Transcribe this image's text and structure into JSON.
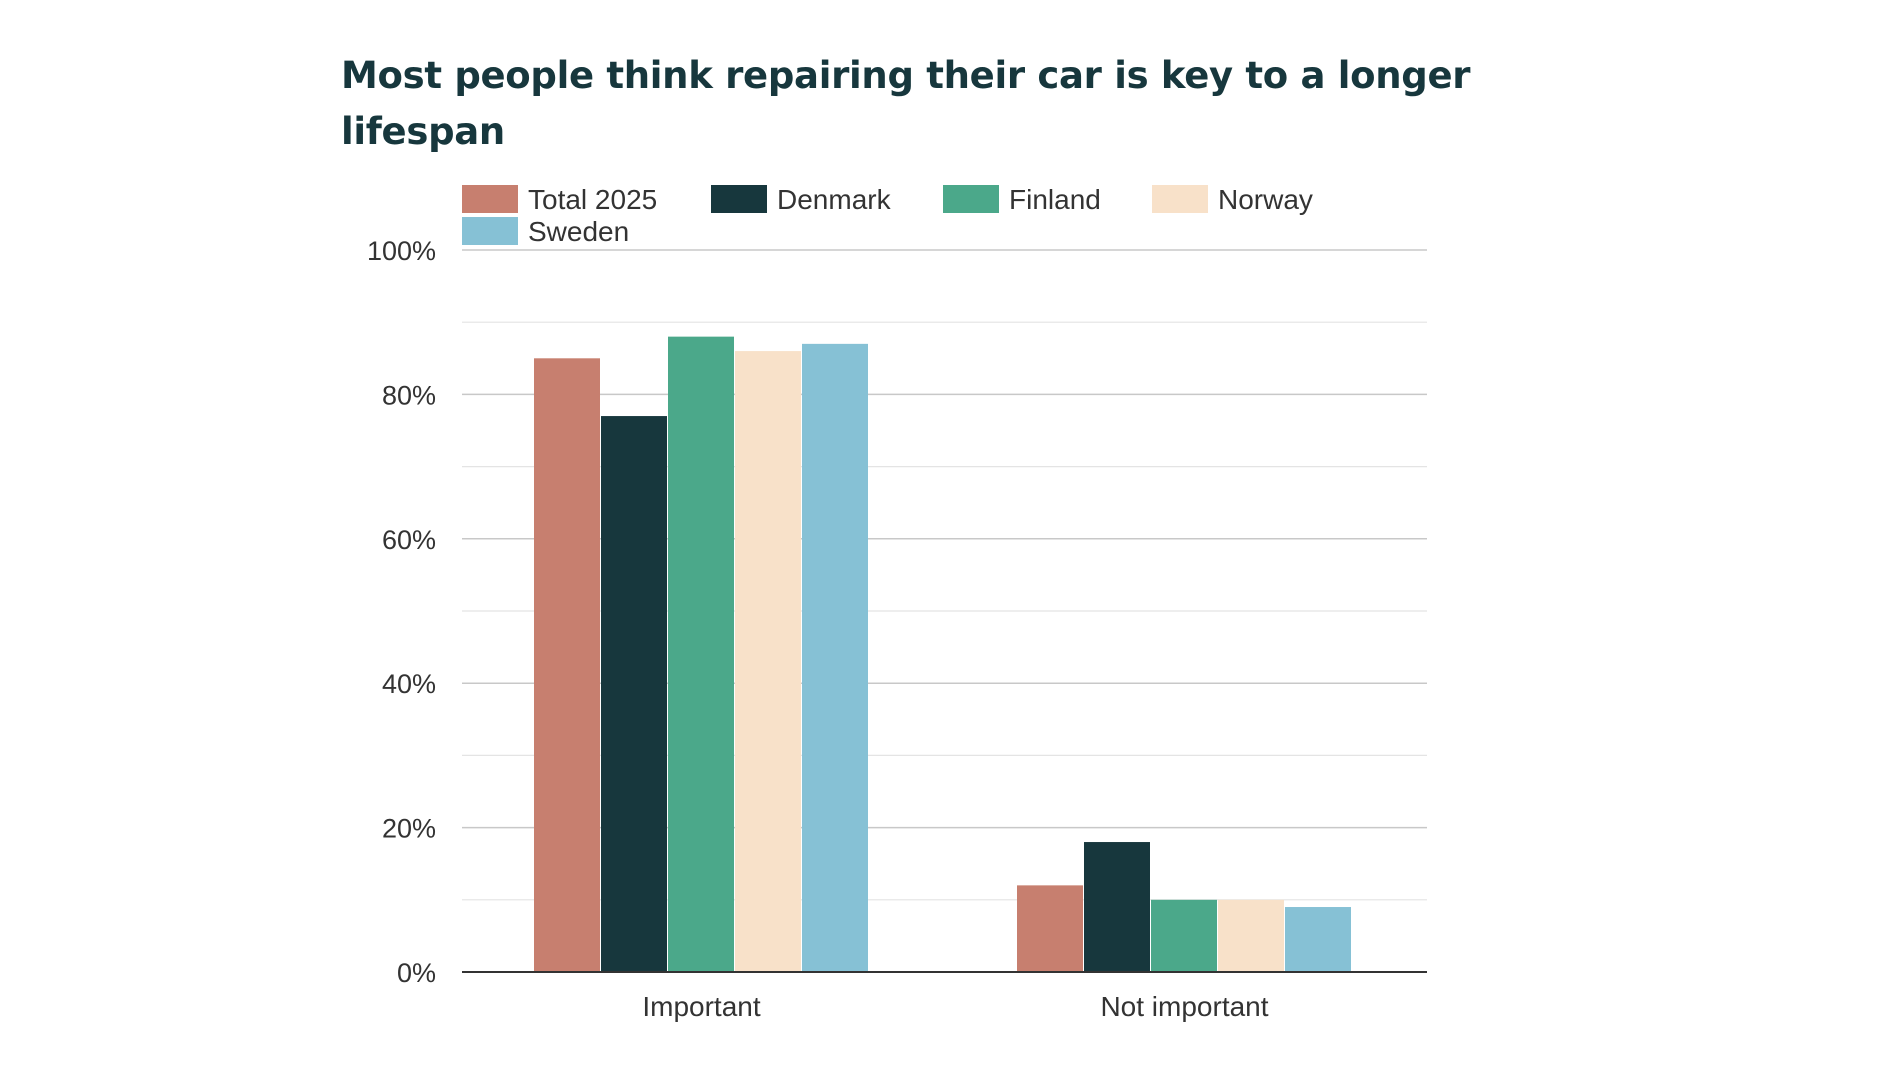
{
  "chart_data": {
    "type": "bar",
    "title": "Most people think repairing their car is key to a longer lifespan",
    "xlabel": "",
    "ylabel": "",
    "ylim": [
      0,
      100
    ],
    "y_ticks": [
      "0%",
      "20%",
      "40%",
      "60%",
      "80%",
      "100%"
    ],
    "y_tick_values": [
      0,
      20,
      40,
      60,
      80,
      100
    ],
    "grid": true,
    "legend_position": "top",
    "categories": [
      "Important",
      "Not important"
    ],
    "series": [
      {
        "name": "Total 2025",
        "color": "#c77f6f",
        "values": [
          85,
          12
        ]
      },
      {
        "name": "Denmark",
        "color": "#17373d",
        "values": [
          77,
          18
        ]
      },
      {
        "name": "Finland",
        "color": "#4ba88a",
        "values": [
          88,
          10
        ]
      },
      {
        "name": "Norway",
        "color": "#f8e1c9",
        "values": [
          86,
          10
        ]
      },
      {
        "name": "Sweden",
        "color": "#86c1d5",
        "values": [
          87,
          9
        ]
      }
    ]
  }
}
